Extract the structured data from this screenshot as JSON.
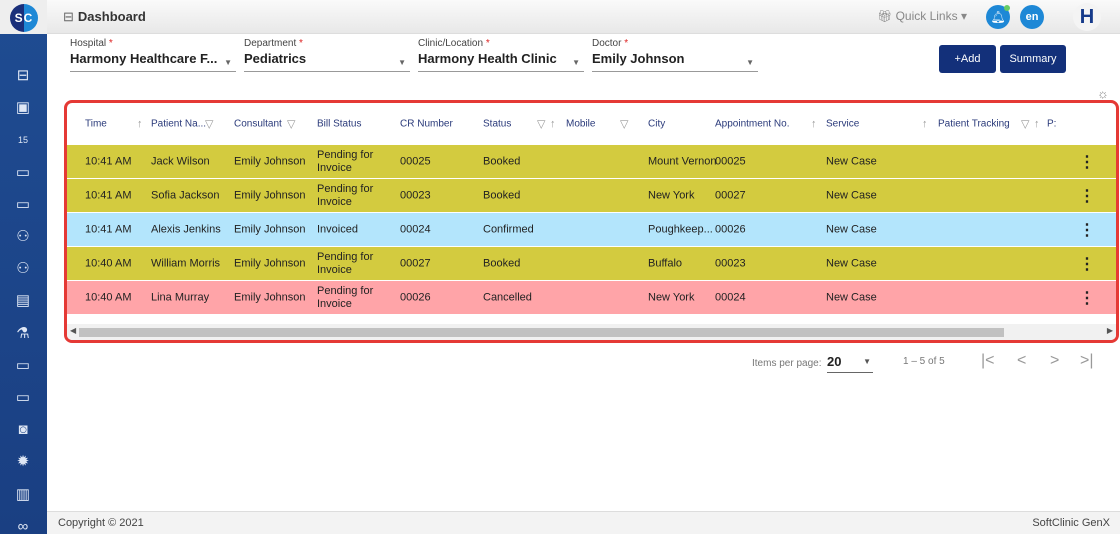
{
  "app": {
    "logo": "SC",
    "title": "Dashboard"
  },
  "topbar": {
    "quick_links": "Quick Links",
    "lang": "en",
    "user_initial": "H"
  },
  "sidebar": {
    "icons": [
      "briefcase-icon",
      "id-card-icon",
      "calendar-icon",
      "monitor-icon",
      "monitor-icon",
      "users-icon",
      "users-icon",
      "clipboard-icon",
      "flask-icon",
      "monitor-icon",
      "monitor-icon",
      "safe-icon",
      "gear-badge-icon",
      "book-icon",
      "glasses-icon"
    ],
    "glyphs": [
      "⊟",
      "▣",
      "15",
      "▭",
      "▭",
      "⚇",
      "⚇",
      "▤",
      "⚗",
      "▭",
      "▭",
      "◙",
      "✹",
      "▥",
      "∞"
    ]
  },
  "filters": [
    {
      "label": "Hospital",
      "value": "Harmony Healthcare F..."
    },
    {
      "label": "Department",
      "value": "Pediatrics"
    },
    {
      "label": "Clinic/Location",
      "value": "Harmony Health Clinic"
    },
    {
      "label": "Doctor",
      "value": "Emily Johnson"
    }
  ],
  "buttons": {
    "add": "+Add",
    "summary": "Summary"
  },
  "table": {
    "columns": [
      "Time",
      "Patient Na...",
      "Consultant",
      "Bill Status",
      "CR Number",
      "Status",
      "Mobile",
      "City",
      "Appointment No.",
      "Service",
      "Patient Tracking",
      "P:"
    ],
    "rows": [
      {
        "time": "10:41 AM",
        "patient": "Jack Wilson",
        "consultant": "Emily Johnson",
        "bill": "Pending for Invoice",
        "cr": "00025",
        "status": "Booked",
        "mobile": "",
        "city": "Mount Vernon",
        "appt": "00025",
        "service": "New Case",
        "color": "#d3cb3f"
      },
      {
        "time": "10:41 AM",
        "patient": "Sofia Jackson",
        "consultant": "Emily Johnson",
        "bill": "Pending for Invoice",
        "cr": "00023",
        "status": "Booked",
        "mobile": "",
        "city": "New York",
        "appt": "00027",
        "service": "New Case",
        "color": "#d3cb3f"
      },
      {
        "time": "10:41 AM",
        "patient": "Alexis Jenkins",
        "consultant": "Emily Johnson",
        "bill": "Invoiced",
        "cr": "00024",
        "status": "Confirmed",
        "mobile": "",
        "city": "Poughkeep...",
        "appt": "00026",
        "service": "New Case",
        "color": "#b3e5fc"
      },
      {
        "time": "10:40 AM",
        "patient": "William Morris",
        "consultant": "Emily Johnson",
        "bill": "Pending for Invoice",
        "cr": "00027",
        "status": "Booked",
        "mobile": "",
        "city": "Buffalo",
        "appt": "00023",
        "service": "New Case",
        "color": "#d3cb3f"
      },
      {
        "time": "10:40 AM",
        "patient": "Lina Murray",
        "consultant": "Emily Johnson",
        "bill": "Pending for Invoice",
        "cr": "00026",
        "status": "Cancelled",
        "mobile": "",
        "city": "New York",
        "appt": "00024",
        "service": "New Case",
        "color": "#ffa4a8"
      }
    ]
  },
  "pager": {
    "items_label": "Items per page:",
    "page_size": "20",
    "range": "1 – 5 of 5"
  },
  "footer": {
    "copyright": "Copyright © 2021",
    "brand": "SoftClinic GenX"
  }
}
